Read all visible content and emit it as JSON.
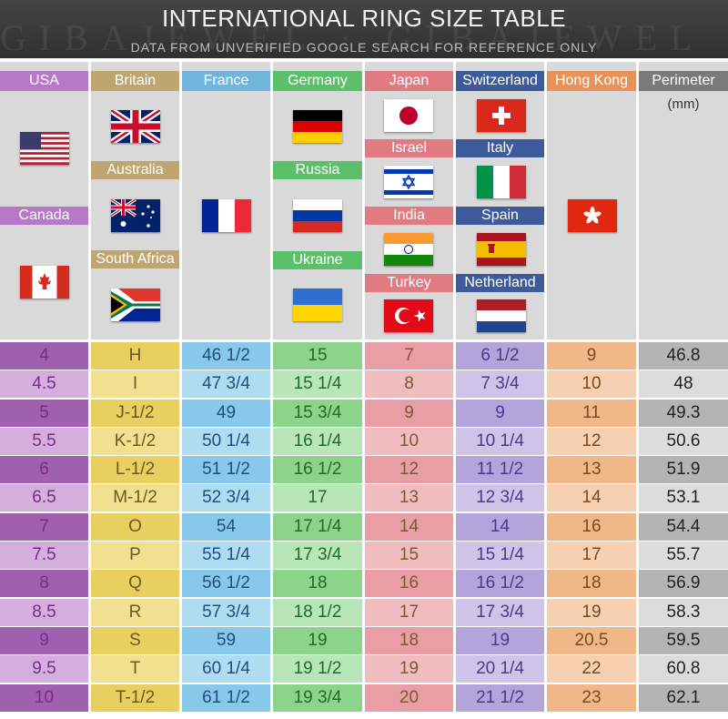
{
  "header": {
    "title": "INTERNATIONAL RING SIZE TABLE",
    "subtitle": "DATA FROM UNVERIFIED GOOGLE SEARCH FOR REFERENCE ONLY"
  },
  "columns": [
    {
      "label": "USA",
      "color": "#b878c8",
      "light": "#d4aedd",
      "dark": "#a060b0"
    },
    {
      "label": "Britain",
      "color": "#bfa670",
      "light": "#f0e090",
      "dark": "#e8cf60"
    },
    {
      "label": "France",
      "color": "#6fb5dc",
      "light": "#b0dcf2",
      "dark": "#88c8ea"
    },
    {
      "label": "Germany",
      "color": "#5cbf6a",
      "light": "#b8e6b8",
      "dark": "#8cd48c"
    },
    {
      "label": "Japan",
      "color": "#e27a82",
      "light": "#f0bcc0",
      "dark": "#e89ea4"
    },
    {
      "label": "Switzerland",
      "color": "#3d5b9a",
      "light": "#cfc4e8",
      "dark": "#b4a4dc"
    },
    {
      "label": "Hong Kong",
      "color": "#e8925a",
      "light": "#f6d0b0",
      "dark": "#f0b888"
    },
    {
      "label": "Perimeter",
      "color": "#7a7a7a",
      "light": "#dcdcdc",
      "dark": "#b4b4b4"
    }
  ],
  "perimeter_unit": "(mm)",
  "sublabels": {
    "canada": "Canada",
    "australia": "Australia",
    "south_africa": "South Africa",
    "russia": "Russia",
    "ukraine": "Ukraine",
    "israel": "Israel",
    "india": "India",
    "turkey": "Turkey",
    "italy": "Italy",
    "spain": "Spain",
    "netherland": "Netherland"
  },
  "flags": [
    "usa-flag",
    "canada-flag",
    "uk-flag",
    "australia-flag",
    "south-africa-flag",
    "france-flag",
    "germany-flag",
    "russia-flag",
    "ukraine-flag",
    "japan-flag",
    "israel-flag",
    "india-flag",
    "turkey-flag",
    "switzerland-flag",
    "italy-flag",
    "spain-flag",
    "netherlands-flag",
    "hong-kong-flag"
  ],
  "rows": [
    [
      "4",
      "H",
      "46 1/2",
      "15",
      "7",
      "6 1/2",
      "9",
      "46.8"
    ],
    [
      "4.5",
      "I",
      "47 3/4",
      "15 1/4",
      "8",
      "7 3/4",
      "10",
      "48"
    ],
    [
      "5",
      "J-1/2",
      "49",
      "15 3/4",
      "9",
      "9",
      "11",
      "49.3"
    ],
    [
      "5.5",
      "K-1/2",
      "50 1/4",
      "16 1/4",
      "10",
      "10 1/4",
      "12",
      "50.6"
    ],
    [
      "6",
      "L-1/2",
      "51 1/2",
      "16 1/2",
      "12",
      "11 1/2",
      "13",
      "51.9"
    ],
    [
      "6.5",
      "M-1/2",
      "52 3/4",
      "17",
      "13",
      "12 3/4",
      "14",
      "53.1"
    ],
    [
      "7",
      "O",
      "54",
      "17 1/4",
      "14",
      "14",
      "16",
      "54.4"
    ],
    [
      "7.5",
      "P",
      "55 1/4",
      "17 3/4",
      "15",
      "15 1/4",
      "17",
      "55.7"
    ],
    [
      "8",
      "Q",
      "56 1/2",
      "18",
      "16",
      "16 1/2",
      "18",
      "56.9"
    ],
    [
      "8.5",
      "R",
      "57 3/4",
      "18 1/2",
      "17",
      "17 3/4",
      "19",
      "58.3"
    ],
    [
      "9",
      "S",
      "59",
      "19",
      "18",
      "19",
      "20.5",
      "59.5"
    ],
    [
      "9.5",
      "T",
      "60 1/4",
      "19 1/2",
      "19",
      "20 1/4",
      "22",
      "60.8"
    ],
    [
      "10",
      "T-1/2",
      "61 1/2",
      "19 3/4",
      "20",
      "21 1/2",
      "23",
      "62.1"
    ]
  ]
}
